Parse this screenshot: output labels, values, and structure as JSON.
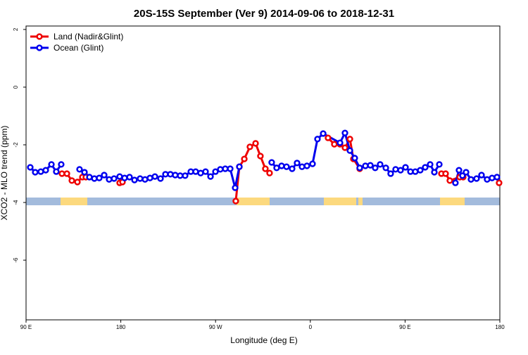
{
  "chart_data": {
    "type": "line",
    "title": "20S-15S September (Ver 9)   2014-09-06 to 2018-12-31",
    "x_label": "Longitude (deg E)",
    "y_label": "XCO2 - MLO trend (ppm)",
    "xlim": [
      90,
      540
    ],
    "xticks": [
      {
        "value": 90,
        "label": "90 E"
      },
      180,
      {
        "value": 270,
        "label": "90 W"
      },
      {
        "value": 360,
        "label": "0"
      },
      {
        "value": 450,
        "label": "90 E"
      },
      {
        "value": 540,
        "label": "180"
      }
    ],
    "ylim": [
      -8.07,
      2.12
    ],
    "yticks": [
      2,
      0,
      -2,
      -4,
      -6
    ],
    "legend": "top-left",
    "series": [
      {
        "name": "Land (Nadir&Glint)",
        "color": "#ee0000",
        "x": [
          124.1,
          128.8,
          133.5,
          138.8,
          143.5,
          146.8,
          null,
          178.9,
          181.6,
          null,
          289.2,
          292.6,
          297.3,
          302.6,
          308.0,
          312.6,
          317.3,
          321.3,
          null,
          376.8,
          382.8,
          388.2,
          392.9,
          397.6,
          400.9,
          406.9,
          null,
          484.5,
          488.5,
          492.5,
          501.9,
          505.2,
          null,
          539.3
        ],
        "values": [
          -3.0,
          -3.0,
          -3.24,
          -3.29,
          -3.12,
          -3.12,
          null,
          -3.32,
          -3.29,
          null,
          -3.95,
          -2.76,
          -2.49,
          -2.07,
          -1.95,
          -2.39,
          -2.83,
          -2.98,
          null,
          -1.76,
          -1.98,
          -1.98,
          -2.1,
          -1.8,
          -2.49,
          -2.83,
          null,
          -3.0,
          -3.0,
          -3.24,
          -3.12,
          -3.12,
          null,
          -3.32
        ]
      },
      {
        "name": "Ocean (Glint)",
        "color": "#0000ee",
        "x": [
          94.0,
          98.7,
          104.0,
          108.7,
          114.1,
          118.7,
          123.4,
          null,
          140.8,
          145.5,
          150.2,
          154.9,
          159.5,
          164.2,
          168.9,
          173.6,
          178.9,
          183.6,
          188.3,
          193.0,
          198.3,
          203.0,
          207.7,
          212.4,
          217.7,
          222.4,
          227.1,
          231.7,
          236.4,
          241.1,
          246.5,
          251.1,
          255.8,
          260.5,
          265.2,
          269.9,
          274.5,
          279.2,
          283.9,
          288.6,
          292.6,
          null,
          323.3,
          328.0,
          332.7,
          337.4,
          342.7,
          347.4,
          352.1,
          356.8,
          362.1,
          366.8,
          372.2,
          388.2,
          392.9,
          397.6,
          402.2,
          406.9,
          412.3,
          417.0,
          421.6,
          426.3,
          431.7,
          436.3,
          441.0,
          445.7,
          450.4,
          455.1,
          459.7,
          464.4,
          469.1,
          473.8,
          477.8,
          482.5,
          null,
          497.8,
          501.2,
          504.5,
          507.9,
          512.6,
          517.9,
          522.6,
          527.9,
          532.6,
          537.3
        ],
        "values": [
          -2.78,
          -2.95,
          -2.93,
          -2.88,
          -2.68,
          -2.93,
          -2.68,
          null,
          -2.85,
          -2.95,
          -3.12,
          -3.17,
          -3.15,
          -3.05,
          -3.2,
          -3.17,
          -3.1,
          -3.15,
          -3.12,
          -3.22,
          -3.17,
          -3.2,
          -3.15,
          -3.1,
          -3.17,
          -3.02,
          -3.02,
          -3.05,
          -3.07,
          -3.07,
          -2.93,
          -2.93,
          -2.98,
          -2.93,
          -3.1,
          -2.93,
          -2.85,
          -2.83,
          -2.83,
          -3.49,
          -2.76,
          null,
          -2.61,
          -2.8,
          -2.73,
          -2.76,
          -2.83,
          -2.63,
          -2.76,
          -2.73,
          -2.66,
          -1.8,
          -1.61,
          -1.93,
          -1.59,
          -2.2,
          -2.46,
          -2.8,
          -2.73,
          -2.71,
          -2.8,
          -2.68,
          -2.8,
          -3.0,
          -2.85,
          -2.88,
          -2.78,
          -2.93,
          -2.93,
          -2.88,
          -2.78,
          -2.68,
          -2.95,
          -2.68,
          null,
          -3.32,
          -2.88,
          -3.07,
          -2.95,
          -3.2,
          -3.17,
          -3.05,
          -3.2,
          -3.15,
          -3.12
        ]
      }
    ]
  }
}
